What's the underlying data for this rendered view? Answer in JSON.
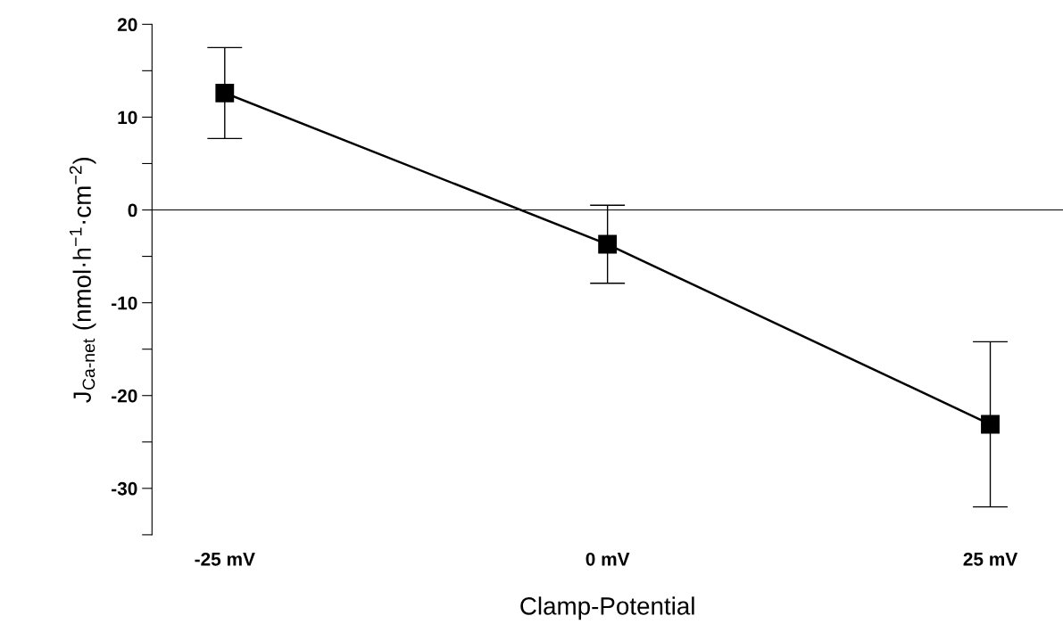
{
  "chart_data": {
    "type": "line",
    "xlabel": "Clamp-Potential",
    "ylabel": "J$_{Ca-net}$ (nmol·h$^{−1}$·cm$^{−2}$)",
    "categories": [
      "-25 mV",
      "0 mV",
      "25 mV"
    ],
    "series": [
      {
        "color": "#000000",
        "values": [
          12.6,
          -3.7,
          -23.1
        ],
        "errors": [
          4.9,
          4.2,
          8.9
        ]
      }
    ],
    "ylim": [
      -35,
      20
    ],
    "yticks": [
      20,
      {
        "value": 15,
        "label": null
      },
      10,
      {
        "value": 5,
        "label": null
      },
      0,
      {
        "value": -5,
        "label": null
      },
      -10,
      {
        "value": -15,
        "label": null
      },
      -20,
      {
        "value": -25,
        "label": null
      },
      -30,
      {
        "value": -35,
        "label": null
      }
    ],
    "ref_lines": [
      {
        "axis": "y",
        "value": 0,
        "color": "#000000"
      }
    ],
    "marker": "square",
    "line_style": "solid",
    "grid": false,
    "legend": false
  }
}
